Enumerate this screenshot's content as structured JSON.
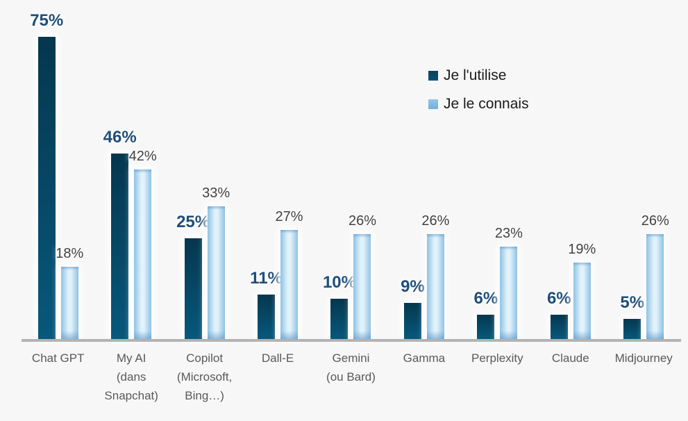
{
  "legend": {
    "items": [
      {
        "label": "Je l'utilise",
        "swatch": "dark-blue"
      },
      {
        "label": "Je le connais",
        "swatch": "light-blue"
      }
    ]
  },
  "chart_data": {
    "type": "bar",
    "title": "",
    "categories": [
      "Chat GPT",
      "My AI (dans Snapchat)",
      "Copilot (Microsoft, Bing…)",
      "Dall-E",
      "Gemini (ou Bard)",
      "Gamma",
      "Perplexity",
      "Claude",
      "Midjourney"
    ],
    "category_label_lines": [
      [
        "Chat GPT"
      ],
      [
        "My AI",
        "(dans",
        "Snapchat)"
      ],
      [
        "Copilot",
        "(Microsoft,",
        "Bing…)"
      ],
      [
        "Dall-E"
      ],
      [
        "Gemini",
        "(ou Bard)"
      ],
      [
        "Gamma"
      ],
      [
        "Perplexity"
      ],
      [
        "Claude"
      ],
      [
        "Midjourney"
      ]
    ],
    "series": [
      {
        "name": "Je l'utilise",
        "values": [
          75,
          46,
          25,
          11,
          10,
          9,
          6,
          6,
          5
        ],
        "color": "#07486a"
      },
      {
        "name": "Je le connais",
        "values": [
          18,
          42,
          33,
          27,
          26,
          26,
          23,
          19,
          26
        ],
        "color": "#aed6f0"
      }
    ],
    "value_suffix": "%",
    "ylim": [
      0,
      80
    ],
    "grid": false,
    "legend_position": "upper-right",
    "colors": {
      "background": "#f7f7f7",
      "dark_bar_top": "#05374e",
      "dark_bar_bottom": "#07587c",
      "light_bar_edge": "#8fc2e4",
      "light_bar_center": "#e1f2fb",
      "dark_value_label": "#1f4e79",
      "light_value_label": "#404040",
      "category_label": "#595959",
      "axis_line": "#b3b3b3",
      "legend_text": "#1a1a1a"
    }
  }
}
